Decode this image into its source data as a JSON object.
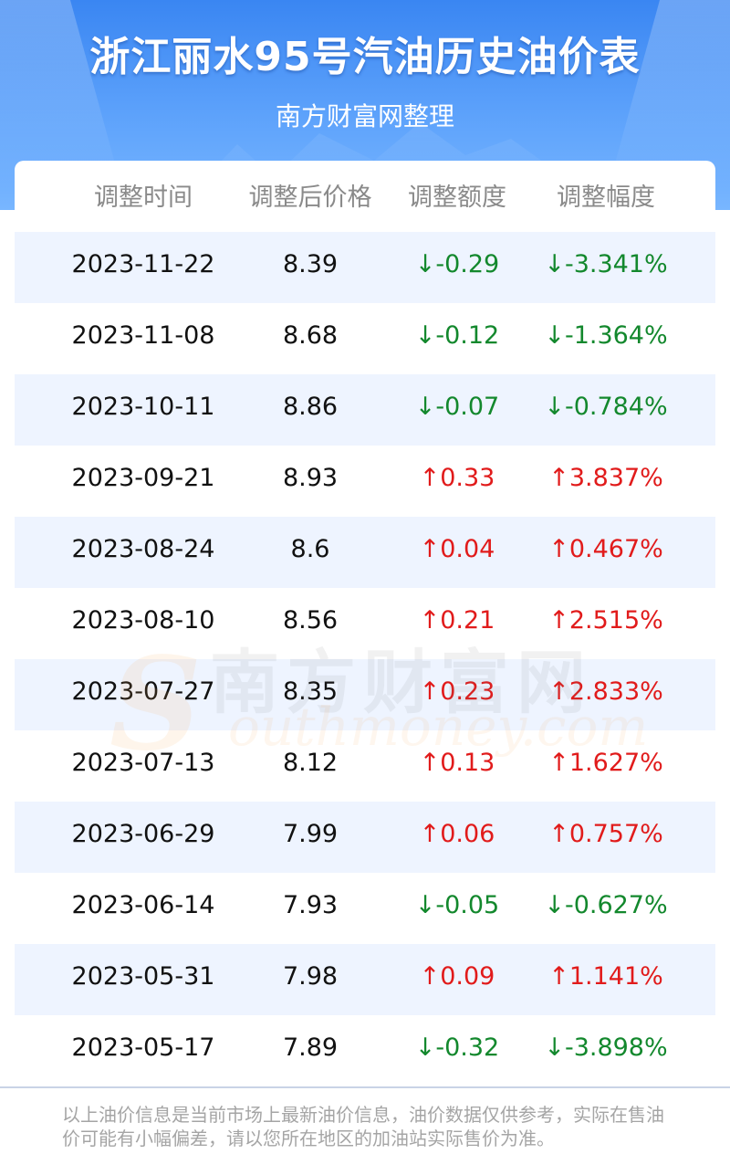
{
  "header": {
    "title": "浙江丽水95号汽油历史油价表",
    "subtitle": "南方财富网整理"
  },
  "table": {
    "columns": [
      "调整时间",
      "调整后价格",
      "调整额度",
      "调整幅度"
    ],
    "rows": [
      {
        "date": "2023-11-22",
        "price": "8.39",
        "change": "↓-0.29",
        "percent": "↓-3.341%",
        "direction": "down"
      },
      {
        "date": "2023-11-08",
        "price": "8.68",
        "change": "↓-0.12",
        "percent": "↓-1.364%",
        "direction": "down"
      },
      {
        "date": "2023-10-11",
        "price": "8.86",
        "change": "↓-0.07",
        "percent": "↓-0.784%",
        "direction": "down"
      },
      {
        "date": "2023-09-21",
        "price": "8.93",
        "change": "↑0.33",
        "percent": "↑3.837%",
        "direction": "up"
      },
      {
        "date": "2023-08-24",
        "price": "8.6",
        "change": "↑0.04",
        "percent": "↑0.467%",
        "direction": "up"
      },
      {
        "date": "2023-08-10",
        "price": "8.56",
        "change": "↑0.21",
        "percent": "↑2.515%",
        "direction": "up"
      },
      {
        "date": "2023-07-27",
        "price": "8.35",
        "change": "↑0.23",
        "percent": "↑2.833%",
        "direction": "up"
      },
      {
        "date": "2023-07-13",
        "price": "8.12",
        "change": "↑0.13",
        "percent": "↑1.627%",
        "direction": "up"
      },
      {
        "date": "2023-06-29",
        "price": "7.99",
        "change": "↑0.06",
        "percent": "↑0.757%",
        "direction": "up"
      },
      {
        "date": "2023-06-14",
        "price": "7.93",
        "change": "↓-0.05",
        "percent": "↓-0.627%",
        "direction": "down"
      },
      {
        "date": "2023-05-31",
        "price": "7.98",
        "change": "↑0.09",
        "percent": "↑1.141%",
        "direction": "up"
      },
      {
        "date": "2023-05-17",
        "price": "7.89",
        "change": "↓-0.32",
        "percent": "↓-3.898%",
        "direction": "down"
      }
    ]
  },
  "watermark": {
    "logo": "S",
    "cn": "南方财富网",
    "en": "outhmoney.com"
  },
  "footer": {
    "disclaimer": "以上油价信息是当前市场上最新油价信息，油价数据仅供参考，实际在售油价可能有小幅偏差，请以您所在地区的加油站实际售价为准。"
  },
  "colors": {
    "up": "#e11b1b",
    "down": "#13882d",
    "header_blue": "#3a86f2",
    "row_stripe": "#eef4ff"
  }
}
